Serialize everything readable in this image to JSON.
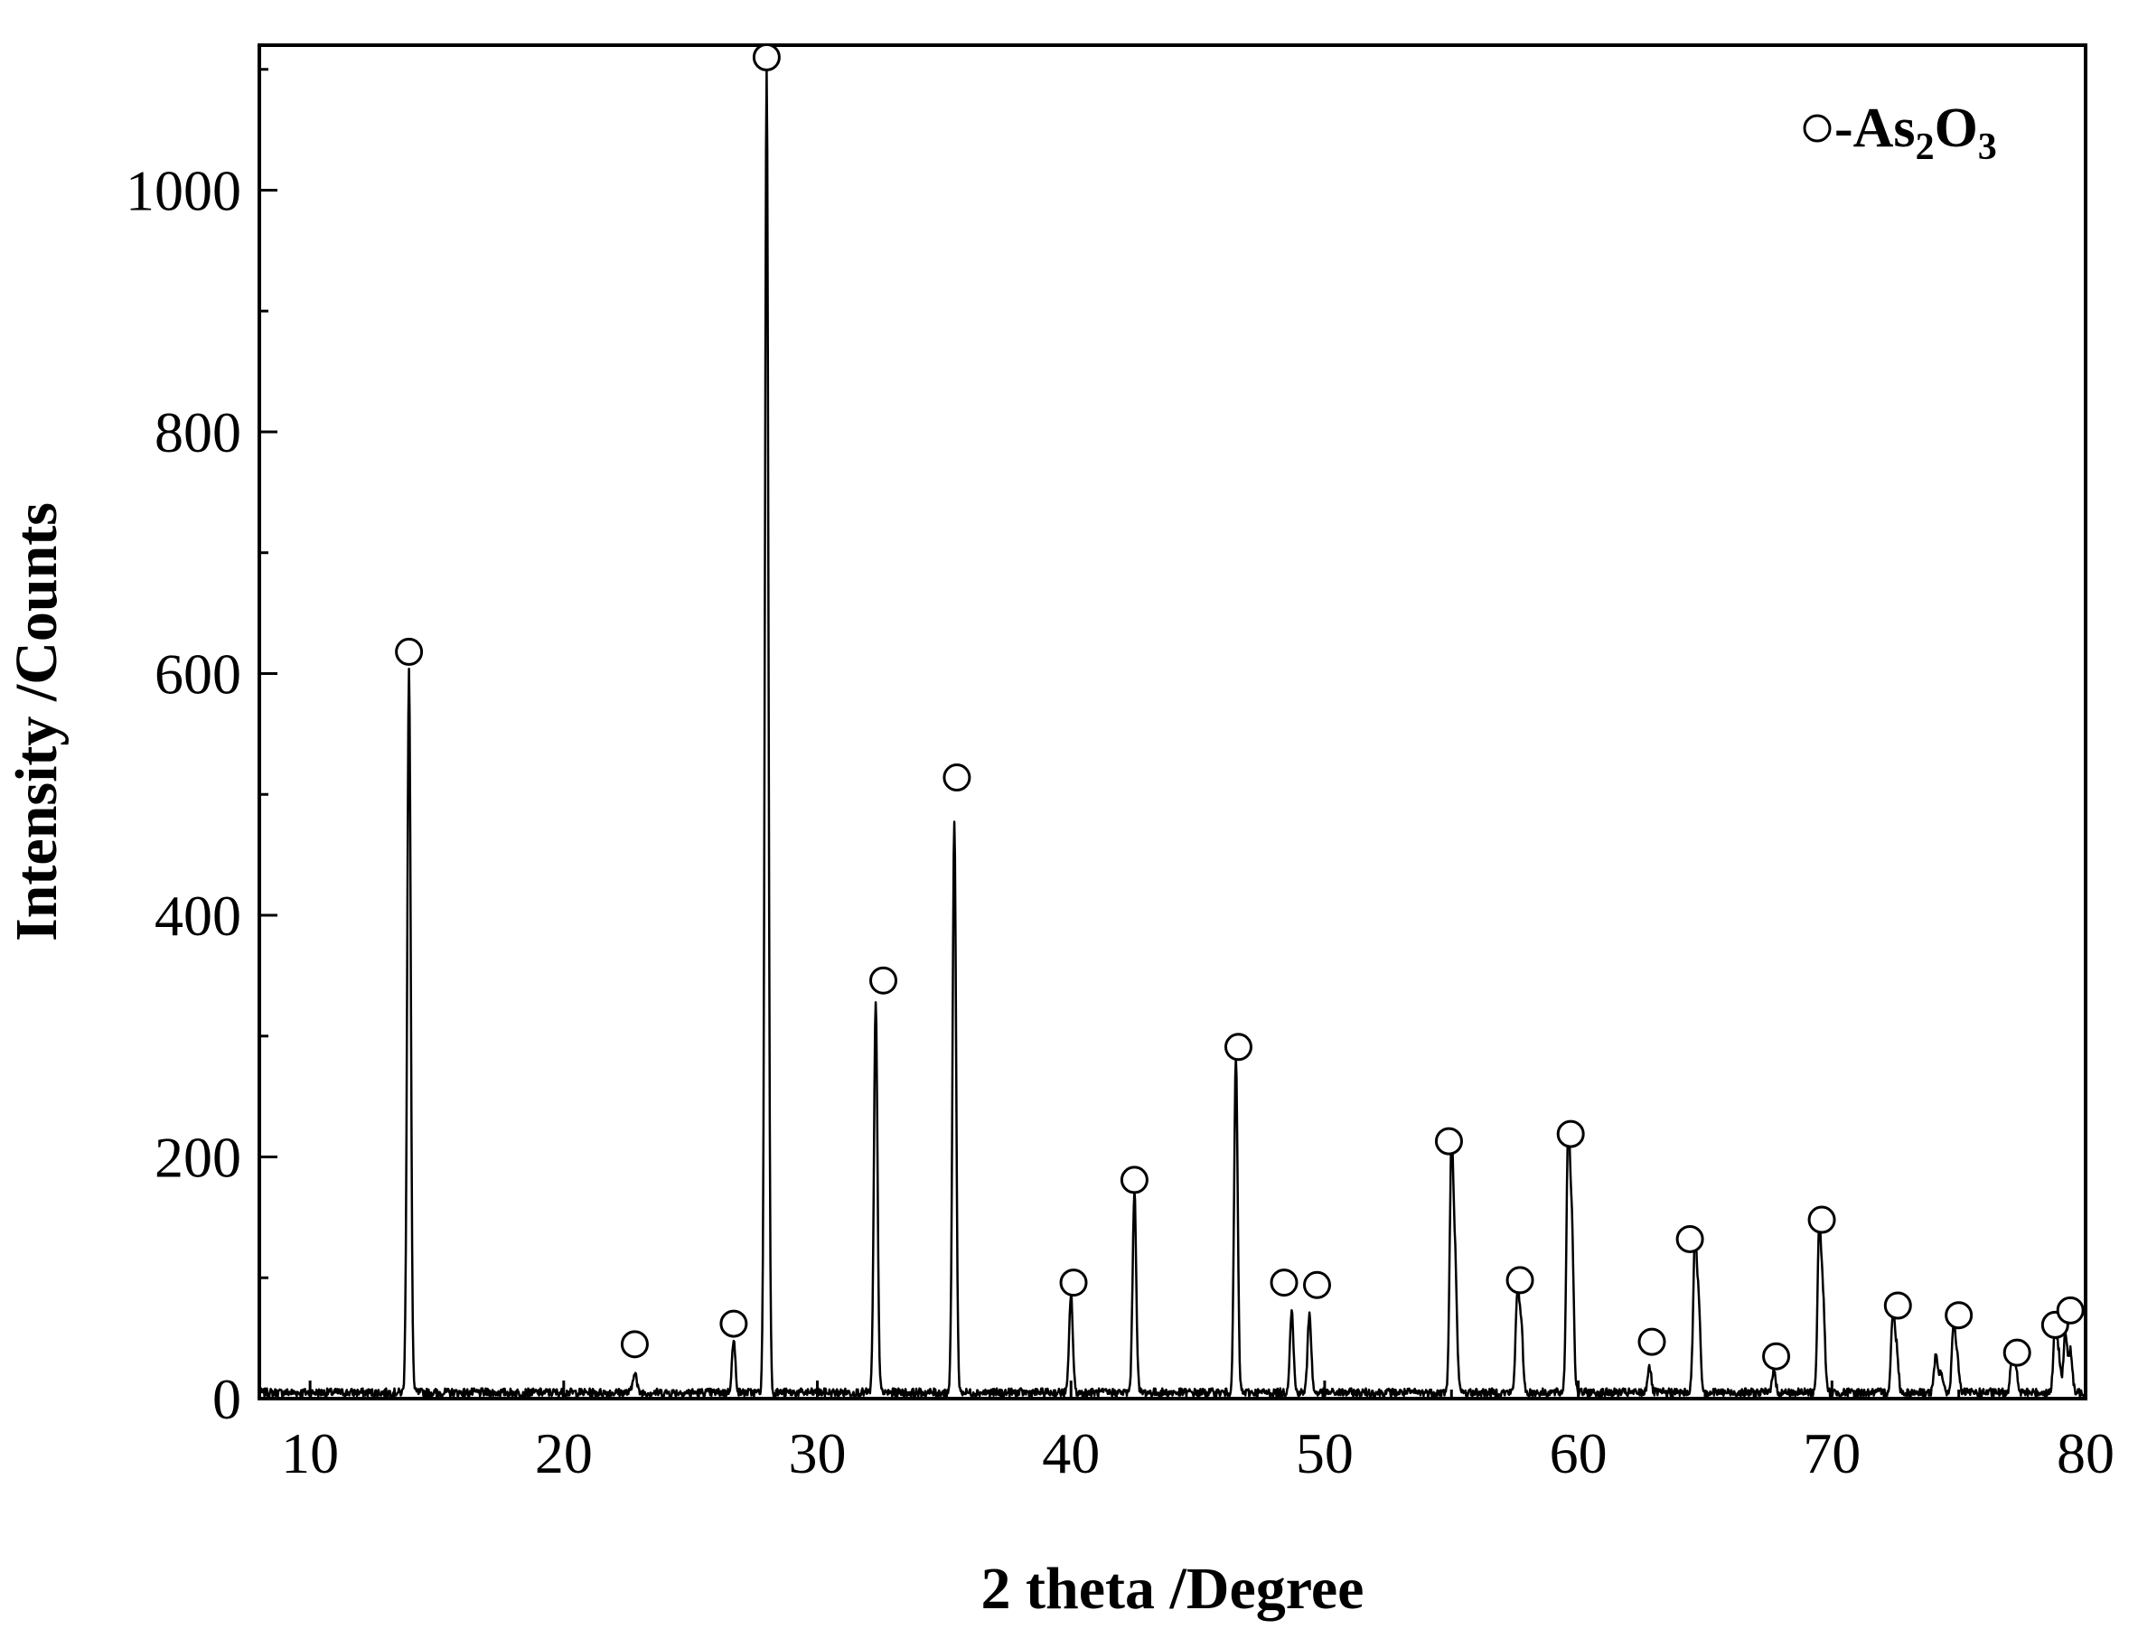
{
  "chart_data": {
    "type": "line",
    "title": "",
    "xlabel": "2 theta /Degree",
    "ylabel": "Intensity /Counts",
    "xlim": [
      8,
      80
    ],
    "ylim": [
      0,
      1120
    ],
    "xticks": [
      10,
      20,
      30,
      40,
      50,
      60,
      70,
      80
    ],
    "yticks": [
      0,
      200,
      400,
      600,
      800,
      1000
    ],
    "x_minor_step": 5,
    "y_minor_step": 100,
    "grid": false,
    "legend": {
      "position": "top-right",
      "marker": "open-circle",
      "prefix": "-As",
      "sub1": "2",
      "mid": "O",
      "sub2": "3"
    },
    "series": [
      {
        "phase": "As2O3",
        "baseline": 5,
        "peaks": [
          [
            13.9,
            598
          ],
          [
            22.8,
            18
          ],
          [
            26.7,
            42
          ],
          [
            28.0,
            1095
          ],
          [
            32.3,
            322
          ],
          [
            35.4,
            475
          ],
          [
            40.0,
            82
          ],
          [
            42.5,
            167
          ],
          [
            46.5,
            277
          ],
          [
            48.7,
            68
          ],
          [
            49.4,
            66
          ],
          [
            55.0,
            203
          ],
          [
            55.15,
            100
          ],
          [
            57.6,
            82
          ],
          [
            57.75,
            52
          ],
          [
            59.6,
            212
          ],
          [
            59.75,
            130
          ],
          [
            62.8,
            22
          ],
          [
            64.6,
            126
          ],
          [
            64.75,
            70
          ],
          [
            67.7,
            18
          ],
          [
            69.5,
            135
          ],
          [
            69.65,
            75
          ],
          [
            72.4,
            63
          ],
          [
            72.55,
            35
          ],
          [
            74.1,
            30
          ],
          [
            74.3,
            18
          ],
          [
            74.8,
            58
          ],
          [
            74.95,
            25
          ],
          [
            77.1,
            30
          ],
          [
            77.25,
            18
          ],
          [
            78.8,
            55
          ],
          [
            78.95,
            28
          ],
          [
            79.2,
            50
          ],
          [
            79.4,
            35
          ]
        ]
      }
    ],
    "markers": [
      [
        13.9,
        618
      ],
      [
        22.8,
        45
      ],
      [
        26.7,
        62
      ],
      [
        28.0,
        1110
      ],
      [
        32.6,
        346
      ],
      [
        35.5,
        514
      ],
      [
        40.1,
        96
      ],
      [
        42.5,
        181
      ],
      [
        46.6,
        291
      ],
      [
        48.4,
        96
      ],
      [
        49.7,
        94
      ],
      [
        54.9,
        213
      ],
      [
        57.7,
        98
      ],
      [
        59.7,
        219
      ],
      [
        62.9,
        47
      ],
      [
        64.4,
        132
      ],
      [
        67.8,
        35
      ],
      [
        69.6,
        148
      ],
      [
        72.6,
        77
      ],
      [
        75.0,
        69
      ],
      [
        77.3,
        38
      ],
      [
        78.8,
        61
      ],
      [
        79.4,
        73
      ]
    ]
  }
}
